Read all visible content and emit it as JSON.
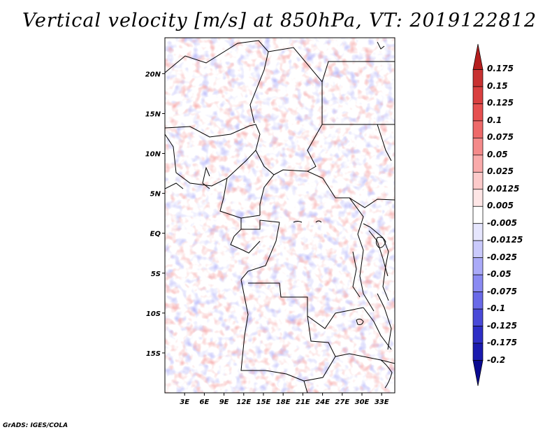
{
  "title": "Vertical velocity [m/s] at 850hPa, VT: 2019122812",
  "credit": "GrADS: IGES/COLA",
  "map": {
    "lon_range": [
      0,
      35
    ],
    "lat_range": [
      -20,
      24.5
    ],
    "lat_ticks": [
      {
        "value": 20,
        "label": "20N"
      },
      {
        "value": 15,
        "label": "15N"
      },
      {
        "value": 10,
        "label": "10N"
      },
      {
        "value": 5,
        "label": "5N"
      },
      {
        "value": 0,
        "label": "EQ"
      },
      {
        "value": -5,
        "label": "5S"
      },
      {
        "value": -10,
        "label": "10S"
      },
      {
        "value": -15,
        "label": "15S"
      }
    ],
    "lon_ticks": [
      {
        "value": 3,
        "label": "3E"
      },
      {
        "value": 6,
        "label": "6E"
      },
      {
        "value": 9,
        "label": "9E"
      },
      {
        "value": 12,
        "label": "12E"
      },
      {
        "value": 15,
        "label": "15E"
      },
      {
        "value": 18,
        "label": "18E"
      },
      {
        "value": 21,
        "label": "21E"
      },
      {
        "value": 24,
        "label": "24E"
      },
      {
        "value": 27,
        "label": "27E"
      },
      {
        "value": 30,
        "label": "30E"
      },
      {
        "value": 33,
        "label": "33E"
      }
    ]
  },
  "colorbar": {
    "labels": [
      "0.175",
      "0.15",
      "0.125",
      "0.1",
      "0.075",
      "0.05",
      "0.025",
      "0.0125",
      "0.005",
      "-0.005",
      "-0.0125",
      "-0.025",
      "-0.05",
      "-0.075",
      "-0.1",
      "-0.125",
      "-0.175",
      "-0.2"
    ],
    "colors": [
      "#b41e1e",
      "#c83232",
      "#d94040",
      "#e65050",
      "#ee6a6a",
      "#f48a8a",
      "#f9aaaa",
      "#fccaca",
      "#fee6e6",
      "#ffffff",
      "#e6e6fe",
      "#cacafc",
      "#aaaaf8",
      "#8a8af2",
      "#6a6ae8",
      "#4a4ad8",
      "#2e2ec6",
      "#1a1aae",
      "#0a0a90"
    ]
  }
}
